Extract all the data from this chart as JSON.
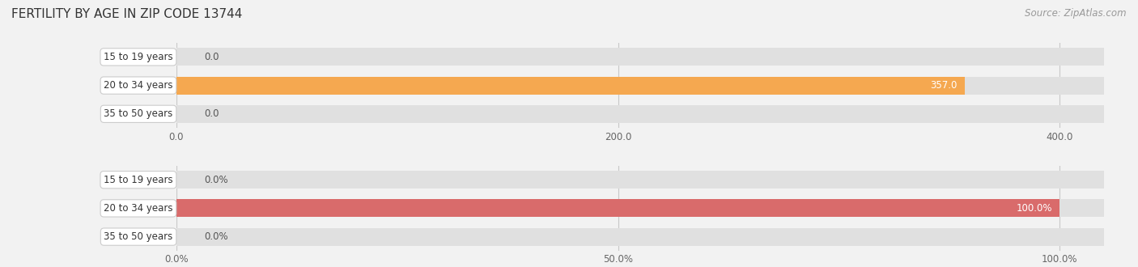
{
  "title": "FERTILITY BY AGE IN ZIP CODE 13744",
  "source": "Source: ZipAtlas.com",
  "background_color": "#f2f2f2",
  "bar_background": "#e0e0e0",
  "top_chart": {
    "categories": [
      "15 to 19 years",
      "20 to 34 years",
      "35 to 50 years"
    ],
    "values": [
      0.0,
      357.0,
      0.0
    ],
    "bar_color": "#f5a850",
    "xlim_max": 420,
    "xticks": [
      0.0,
      200.0,
      400.0
    ],
    "bar_height": 0.62
  },
  "bottom_chart": {
    "categories": [
      "15 to 19 years",
      "20 to 34 years",
      "35 to 50 years"
    ],
    "values": [
      0.0,
      100.0,
      0.0
    ],
    "bar_color": "#d96b6b",
    "xlim_max": 105,
    "xticks": [
      0.0,
      50.0,
      100.0
    ],
    "xtick_labels": [
      "0.0%",
      "50.0%",
      "100.0%"
    ],
    "bar_height": 0.62
  },
  "label_fontsize": 8.5,
  "tick_fontsize": 8.5,
  "title_fontsize": 11,
  "category_fontsize": 8.5,
  "source_fontsize": 8.5
}
